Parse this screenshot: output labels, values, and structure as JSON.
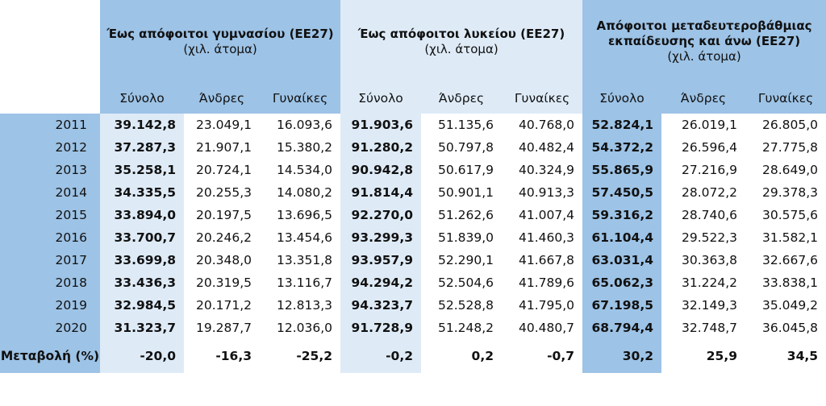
{
  "groups": [
    {
      "title": "Έως απόφοιτοι γυμνασίου (ΕΕ27)",
      "unit": "(χιλ. άτομα)"
    },
    {
      "title": "Έως απόφοιτοι λυκείου (ΕΕ27)",
      "unit": "(χιλ. άτομα)"
    },
    {
      "title": "Απόφοιτοι μεταδευτεροβάθμιας εκπαίδευσης και άνω (ΕΕ27)",
      "unit": "(χιλ. άτομα)"
    }
  ],
  "subheaders": [
    "Σύνολο",
    "Άνδρες",
    "Γυναίκες",
    "Σύνολο",
    "Άνδρες",
    "Γυναίκες",
    "Σύνολο",
    "Άνδρες",
    "Γυναίκες"
  ],
  "rows": [
    {
      "year": "2011",
      "values": [
        "39.142,8",
        "23.049,1",
        "16.093,6",
        "91.903,6",
        "51.135,6",
        "40.768,0",
        "52.824,1",
        "26.019,1",
        "26.805,0"
      ]
    },
    {
      "year": "2012",
      "values": [
        "37.287,3",
        "21.907,1",
        "15.380,2",
        "91.280,2",
        "50.797,8",
        "40.482,4",
        "54.372,2",
        "26.596,4",
        "27.775,8"
      ]
    },
    {
      "year": "2013",
      "values": [
        "35.258,1",
        "20.724,1",
        "14.534,0",
        "90.942,8",
        "50.617,9",
        "40.324,9",
        "55.865,9",
        "27.216,9",
        "28.649,0"
      ]
    },
    {
      "year": "2014",
      "values": [
        "34.335,5",
        "20.255,3",
        "14.080,2",
        "91.814,4",
        "50.901,1",
        "40.913,3",
        "57.450,5",
        "28.072,2",
        "29.378,3"
      ]
    },
    {
      "year": "2015",
      "values": [
        "33.894,0",
        "20.197,5",
        "13.696,5",
        "92.270,0",
        "51.262,6",
        "41.007,4",
        "59.316,2",
        "28.740,6",
        "30.575,6"
      ]
    },
    {
      "year": "2016",
      "values": [
        "33.700,7",
        "20.246,2",
        "13.454,6",
        "93.299,3",
        "51.839,0",
        "41.460,3",
        "61.104,4",
        "29.522,3",
        "31.582,1"
      ]
    },
    {
      "year": "2017",
      "values": [
        "33.699,8",
        "20.348,0",
        "13.351,8",
        "93.957,9",
        "52.290,1",
        "41.667,8",
        "63.031,4",
        "30.363,8",
        "32.667,6"
      ]
    },
    {
      "year": "2018",
      "values": [
        "33.436,3",
        "20.319,5",
        "13.116,7",
        "94.294,2",
        "52.504,6",
        "41.789,6",
        "65.062,3",
        "31.224,2",
        "33.838,1"
      ]
    },
    {
      "year": "2019",
      "values": [
        "32.984,5",
        "20.171,2",
        "12.813,3",
        "94.323,7",
        "52.528,8",
        "41.795,0",
        "67.198,5",
        "32.149,3",
        "35.049,2"
      ]
    },
    {
      "year": "2020",
      "values": [
        "31.323,7",
        "19.287,7",
        "12.036,0",
        "91.728,9",
        "51.248,2",
        "40.480,7",
        "68.794,4",
        "32.748,7",
        "36.045,8"
      ]
    }
  ],
  "change": {
    "label": "Μεταβολή (%)",
    "values": [
      "-20,0",
      "-16,3",
      "-25,2",
      "-0,2",
      "0,2",
      "-0,7",
      "30,2",
      "25,9",
      "34,5"
    ]
  }
}
